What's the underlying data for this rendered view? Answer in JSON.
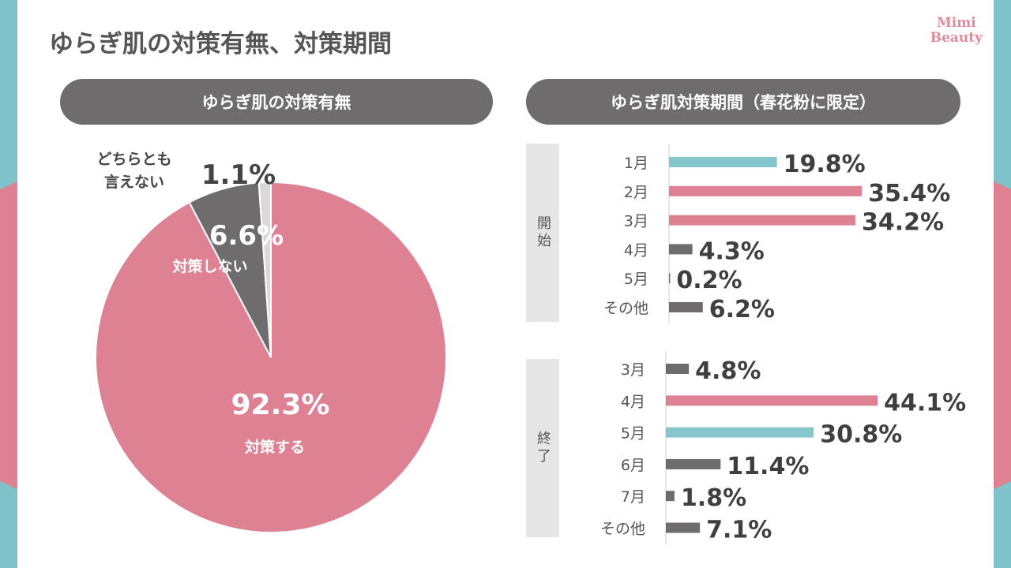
{
  "title": "ゆらぎ肌の対策有無、対策期間",
  "logo": {
    "line1": "Mimi",
    "line2": "Beauty"
  },
  "colors": {
    "pink": "#de8192",
    "teal": "#86c5cc",
    "gray": "#6e6c6d",
    "light": "#d9d9d9"
  },
  "chart_data": [
    {
      "type": "pie",
      "title": "ゆらぎ肌の対策有無",
      "slices": [
        {
          "label": "対策する",
          "value": 92.3,
          "value_label": "92.3%",
          "color": "#de8192"
        },
        {
          "label": "対策しない",
          "value": 6.6,
          "value_label": "6.6%",
          "color": "#6e6c6d"
        },
        {
          "label": "どちらとも言えない",
          "label_lines": [
            "どちらとも",
            "言えない"
          ],
          "value": 1.1,
          "value_label": "1.1%",
          "color": "#d9d9d9"
        }
      ]
    },
    {
      "type": "bar",
      "orientation": "horizontal",
      "title": "ゆらぎ肌対策期間（春花粉に限定）",
      "groups": [
        {
          "name": "開始",
          "categories": [
            "1月",
            "2月",
            "3月",
            "4月",
            "5月",
            "その他"
          ],
          "values": [
            19.8,
            35.4,
            34.2,
            4.3,
            0.2,
            6.2
          ],
          "value_labels": [
            "19.8%",
            "35.4%",
            "34.2%",
            "4.3%",
            "0.2%",
            "6.2%"
          ],
          "colors": [
            "#86c5cc",
            "#de8192",
            "#de8192",
            "#6e6c6d",
            "#6e6c6d",
            "#6e6c6d"
          ]
        },
        {
          "name": "終了",
          "categories": [
            "3月",
            "4月",
            "5月",
            "6月",
            "7月",
            "その他"
          ],
          "values": [
            4.8,
            44.1,
            30.8,
            11.4,
            1.8,
            7.1
          ],
          "value_labels": [
            "4.8%",
            "44.1%",
            "30.8%",
            "11.4%",
            "1.8%",
            "7.1%"
          ],
          "colors": [
            "#6e6c6d",
            "#de8192",
            "#86c5cc",
            "#6e6c6d",
            "#6e6c6d",
            "#6e6c6d"
          ]
        }
      ]
    }
  ]
}
